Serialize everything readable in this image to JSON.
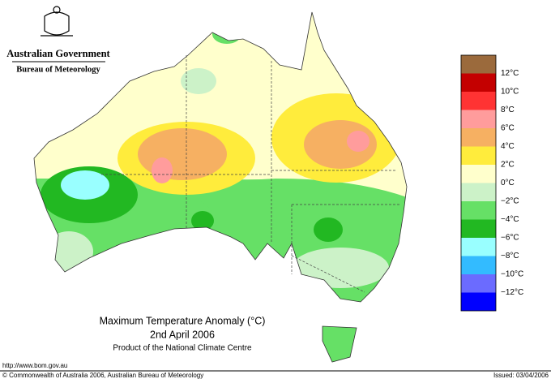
{
  "header": {
    "title": "Australian Government",
    "subtitle": "Bureau of Meteorology"
  },
  "map": {
    "title": "Maximum Temperature Anomaly (°C)",
    "date": "2nd April 2006",
    "credit": "Product of the National Climate Centre"
  },
  "legend": {
    "colors": [
      "#9b6a3c",
      "#c40000",
      "#ff3333",
      "#ff9c9c",
      "#f6b062",
      "#ffec3c",
      "#ffffcc",
      "#ccf2c8",
      "#66e066",
      "#22b822",
      "#99ffff",
      "#33bbff",
      "#6b6bff",
      "#0000ff"
    ],
    "labels": [
      "12°C",
      "10°C",
      "8°C",
      "6°C",
      "4°C",
      "2°C",
      "0°C",
      "−2°C",
      "−4°C",
      "−6°C",
      "−8°C",
      "−10°C",
      "−12°C"
    ]
  },
  "footer": {
    "url": "http://www.bom.gov.au",
    "copyright": "© Commonwealth of Australia 2006, Australian Bureau of Meteorology",
    "issued": "Issued: 03/04/2006"
  }
}
